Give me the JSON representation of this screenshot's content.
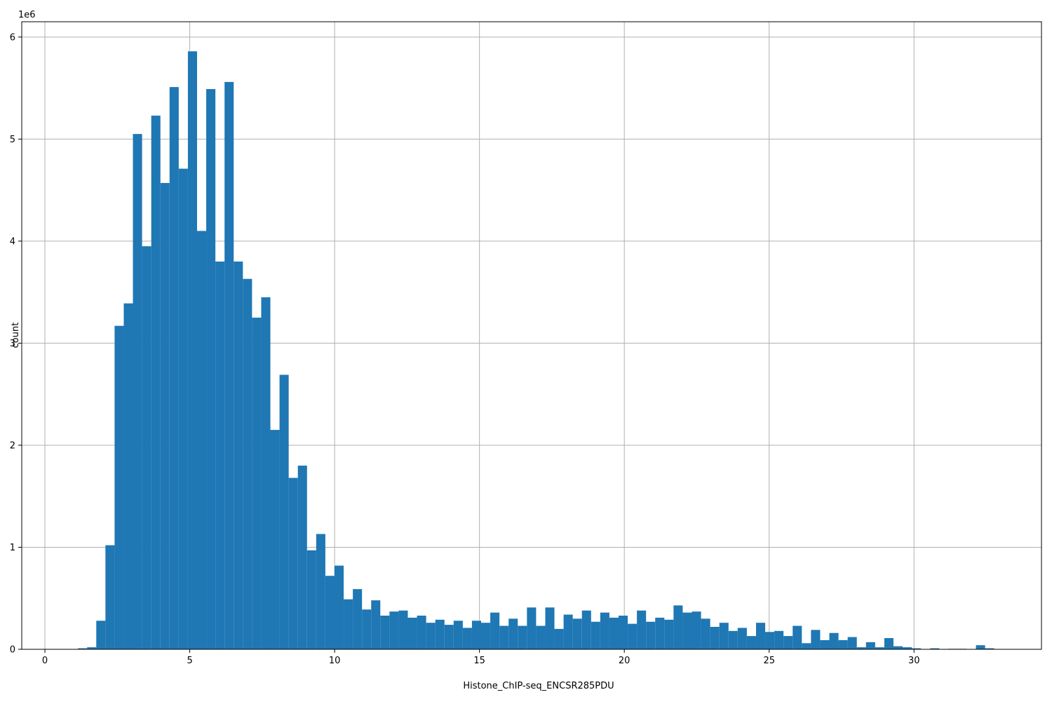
{
  "chart_data": {
    "type": "bar",
    "title": "",
    "xlabel": "Histone_ChIP-seq_ENCSR285PDU",
    "ylabel": "count",
    "y_offset_label": "1e6",
    "xlim": [
      -0.8,
      34.4
    ],
    "ylim": [
      0,
      6.15
    ],
    "y_unit_multiplier": 1000000,
    "x_ticks": [
      0,
      5,
      10,
      15,
      20,
      25,
      30
    ],
    "y_ticks": [
      0,
      1,
      2,
      3,
      4,
      5,
      6
    ],
    "grid": true,
    "bar_color": "#1f77b4",
    "bins": {
      "start": 1.14,
      "width": 0.3163,
      "values": [
        0.01,
        0.02,
        0.28,
        1.02,
        3.17,
        3.39,
        5.05,
        3.95,
        5.23,
        4.57,
        5.51,
        4.71,
        5.86,
        4.1,
        5.49,
        3.8,
        5.56,
        3.8,
        3.63,
        3.25,
        3.45,
        2.15,
        2.69,
        1.68,
        1.8,
        0.97,
        1.13,
        0.72,
        0.82,
        0.49,
        0.59,
        0.39,
        0.48,
        0.33,
        0.37,
        0.38,
        0.31,
        0.33,
        0.26,
        0.29,
        0.24,
        0.28,
        0.21,
        0.28,
        0.26,
        0.36,
        0.23,
        0.3,
        0.23,
        0.41,
        0.23,
        0.41,
        0.2,
        0.34,
        0.3,
        0.38,
        0.27,
        0.36,
        0.31,
        0.33,
        0.25,
        0.38,
        0.27,
        0.31,
        0.29,
        0.43,
        0.36,
        0.37,
        0.3,
        0.22,
        0.26,
        0.18,
        0.21,
        0.13,
        0.26,
        0.17,
        0.18,
        0.13,
        0.23,
        0.06,
        0.19,
        0.09,
        0.16,
        0.09,
        0.12,
        0.02,
        0.07,
        0.02,
        0.11,
        0.03,
        0.02,
        0.01,
        0.0,
        0.01,
        0.0,
        0.005,
        0.005,
        0.0,
        0.04,
        0.01
      ]
    }
  }
}
